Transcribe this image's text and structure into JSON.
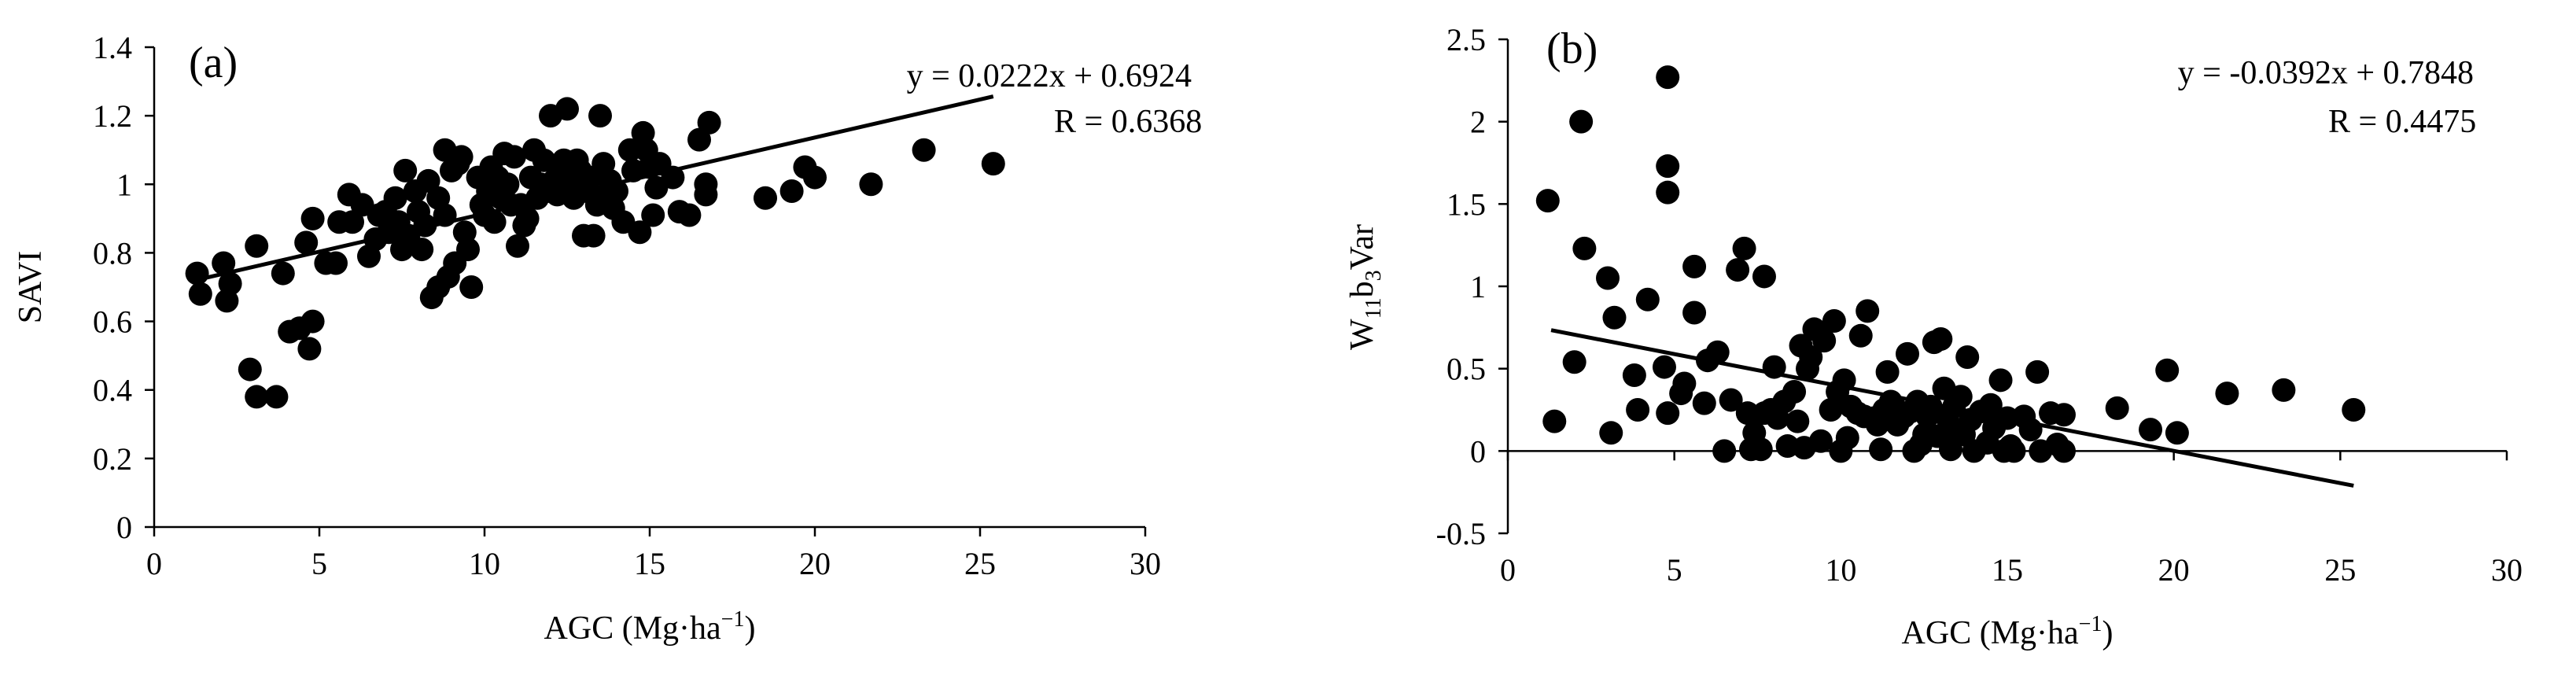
{
  "chart_data": [
    {
      "type": "scatter",
      "panel_label": "(a)",
      "xlabel": "AGC (Mg·ha⁻¹)",
      "xlabel_main": "AGC (Mg·ha",
      "xlabel_sup": "−1",
      "xlabel_tail": ")",
      "ylabel": "SAVI",
      "xlim": [
        0,
        30
      ],
      "ylim": [
        0,
        1.4
      ],
      "xticks": [
        0,
        5,
        10,
        15,
        20,
        25,
        30
      ],
      "yticks": [
        0,
        0.2,
        0.4,
        0.6,
        0.8,
        1,
        1.2,
        1.4
      ],
      "ytick_labels": [
        "0",
        "0.2",
        "0.4",
        "0.6",
        "0.8",
        "1",
        "1.2",
        "1.4"
      ],
      "equation": "y = 0.0222x + 0.6924",
      "r_text": "R = 0.6368",
      "trendline": {
        "slope": 0.0222,
        "intercept": 0.6924,
        "x_range": [
          1.3,
          25.4
        ]
      },
      "marker_color": "#000000",
      "grid": false,
      "points": [
        [
          1.3,
          0.74
        ],
        [
          1.4,
          0.68
        ],
        [
          2.1,
          0.77
        ],
        [
          2.2,
          0.66
        ],
        [
          2.3,
          0.71
        ],
        [
          2.9,
          0.46
        ],
        [
          3.1,
          0.38
        ],
        [
          3.1,
          0.82
        ],
        [
          3.7,
          0.38
        ],
        [
          3.9,
          0.74
        ],
        [
          4.1,
          0.57
        ],
        [
          4.4,
          0.58
        ],
        [
          4.6,
          0.83
        ],
        [
          4.7,
          0.52
        ],
        [
          4.8,
          0.6
        ],
        [
          4.8,
          0.9
        ],
        [
          5.2,
          0.77
        ],
        [
          5.5,
          0.77
        ],
        [
          5.6,
          0.89
        ],
        [
          5.9,
          0.97
        ],
        [
          6.0,
          0.89
        ],
        [
          6.3,
          0.94
        ],
        [
          6.5,
          0.79
        ],
        [
          6.7,
          0.84
        ],
        [
          6.8,
          0.91
        ],
        [
          7.0,
          0.92
        ],
        [
          7.1,
          0.86
        ],
        [
          7.3,
          0.96
        ],
        [
          7.4,
          0.89
        ],
        [
          7.5,
          0.81
        ],
        [
          7.6,
          1.04
        ],
        [
          7.7,
          0.85
        ],
        [
          7.9,
          0.98
        ],
        [
          8.0,
          0.92
        ],
        [
          8.1,
          0.81
        ],
        [
          8.2,
          0.88
        ],
        [
          8.3,
          1.01
        ],
        [
          8.4,
          0.67
        ],
        [
          8.6,
          0.7
        ],
        [
          8.6,
          0.96
        ],
        [
          8.8,
          0.91
        ],
        [
          8.8,
          1.1
        ],
        [
          8.9,
          0.73
        ],
        [
          9.0,
          1.04
        ],
        [
          9.1,
          0.77
        ],
        [
          9.2,
          1.06
        ],
        [
          9.3,
          1.08
        ],
        [
          9.4,
          0.86
        ],
        [
          9.5,
          0.81
        ],
        [
          9.6,
          0.7
        ],
        [
          9.8,
          1.02
        ],
        [
          9.9,
          0.94
        ],
        [
          10.0,
          0.91
        ],
        [
          10.1,
          0.98
        ],
        [
          10.2,
          1.05
        ],
        [
          10.3,
          0.89
        ],
        [
          10.4,
          1.02
        ],
        [
          10.5,
          0.96
        ],
        [
          10.6,
          1.09
        ],
        [
          10.7,
          1.0
        ],
        [
          10.8,
          0.94
        ],
        [
          10.9,
          1.08
        ],
        [
          11.0,
          0.82
        ],
        [
          11.1,
          0.94
        ],
        [
          11.2,
          0.88
        ],
        [
          11.3,
          0.9
        ],
        [
          11.4,
          1.02
        ],
        [
          11.5,
          1.1
        ],
        [
          11.6,
          0.96
        ],
        [
          11.7,
          1.0
        ],
        [
          11.8,
          1.07
        ],
        [
          11.9,
          0.98
        ],
        [
          12.0,
          1.2
        ],
        [
          12.1,
          1.01
        ],
        [
          12.2,
          0.97
        ],
        [
          12.3,
          1.04
        ],
        [
          12.4,
          1.07
        ],
        [
          12.5,
          1.22
        ],
        [
          12.6,
          1.01
        ],
        [
          12.7,
          0.96
        ],
        [
          12.8,
          1.07
        ],
        [
          12.9,
          1.04
        ],
        [
          13.0,
          0.85
        ],
        [
          13.1,
          0.98
        ],
        [
          13.2,
          1.02
        ],
        [
          13.3,
          0.85
        ],
        [
          13.4,
          0.94
        ],
        [
          13.5,
          1.2
        ],
        [
          13.6,
          1.06
        ],
        [
          13.7,
          0.97
        ],
        [
          13.8,
          1.01
        ],
        [
          13.9,
          0.93
        ],
        [
          14.0,
          0.98
        ],
        [
          14.2,
          0.89
        ],
        [
          14.4,
          1.1
        ],
        [
          14.5,
          1.04
        ],
        [
          14.7,
          0.86
        ],
        [
          14.8,
          1.15
        ],
        [
          14.9,
          1.1
        ],
        [
          15.0,
          1.05
        ],
        [
          15.1,
          0.91
        ],
        [
          15.2,
          0.99
        ],
        [
          15.3,
          1.06
        ],
        [
          15.7,
          1.02
        ],
        [
          15.9,
          0.92
        ],
        [
          16.2,
          0.91
        ],
        [
          16.5,
          1.13
        ],
        [
          16.7,
          0.97
        ],
        [
          16.7,
          1.0
        ],
        [
          16.8,
          1.18
        ],
        [
          18.5,
          0.96
        ],
        [
          19.3,
          0.98
        ],
        [
          19.7,
          1.05
        ],
        [
          20.0,
          1.02
        ],
        [
          21.7,
          1.0
        ],
        [
          23.3,
          1.1
        ],
        [
          25.4,
          1.06
        ]
      ]
    },
    {
      "type": "scatter",
      "panel_label": "(b)",
      "xlabel": "AGC (Mg·ha⁻¹)",
      "xlabel_main": "AGC (Mg·ha",
      "xlabel_sup": "−1",
      "xlabel_tail": ")",
      "ylabel": "W₁₁b₃Var",
      "ylabel_parts": [
        "W",
        "11",
        "b",
        "3",
        "Var"
      ],
      "xlim": [
        0,
        30
      ],
      "ylim": [
        -0.5,
        2.5
      ],
      "xticks": [
        0,
        5,
        10,
        15,
        20,
        25,
        30
      ],
      "yticks": [
        -0.5,
        0,
        0.5,
        1,
        1.5,
        2,
        2.5
      ],
      "ytick_labels": [
        "-0.5",
        "0",
        "0.5",
        "1",
        "1.5",
        "2",
        "2.5"
      ],
      "equation": "y = -0.0392x + 0.7848",
      "r_text": "R = 0.4475",
      "trendline": {
        "slope": -0.0392,
        "intercept": 0.7848,
        "x_range": [
          1.3,
          25.4
        ]
      },
      "marker_color": "#000000",
      "grid": false,
      "points": [
        [
          1.2,
          1.52
        ],
        [
          1.4,
          0.18
        ],
        [
          2.0,
          0.54
        ],
        [
          2.2,
          2.0
        ],
        [
          2.3,
          1.23
        ],
        [
          3.0,
          1.05
        ],
        [
          3.1,
          0.11
        ],
        [
          3.2,
          0.81
        ],
        [
          3.8,
          0.46
        ],
        [
          3.9,
          0.25
        ],
        [
          4.2,
          0.92
        ],
        [
          4.7,
          0.51
        ],
        [
          4.8,
          0.23
        ],
        [
          4.8,
          2.27
        ],
        [
          4.8,
          1.73
        ],
        [
          4.8,
          1.57
        ],
        [
          5.2,
          0.35
        ],
        [
          5.3,
          0.41
        ],
        [
          5.6,
          1.12
        ],
        [
          5.6,
          0.84
        ],
        [
          5.9,
          0.29
        ],
        [
          6.0,
          0.55
        ],
        [
          6.3,
          0.6
        ],
        [
          6.5,
          0.0
        ],
        [
          6.7,
          0.31
        ],
        [
          6.9,
          1.1
        ],
        [
          7.1,
          1.23
        ],
        [
          7.2,
          0.23
        ],
        [
          7.3,
          0.01
        ],
        [
          7.4,
          0.11
        ],
        [
          7.6,
          0.01
        ],
        [
          7.7,
          0.23
        ],
        [
          7.7,
          1.06
        ],
        [
          7.9,
          0.25
        ],
        [
          8.0,
          0.51
        ],
        [
          8.1,
          0.2
        ],
        [
          8.3,
          0.3
        ],
        [
          8.4,
          0.03
        ],
        [
          8.6,
          0.36
        ],
        [
          8.7,
          0.18
        ],
        [
          8.8,
          0.64
        ],
        [
          8.9,
          0.02
        ],
        [
          9.0,
          0.5
        ],
        [
          9.1,
          0.57
        ],
        [
          9.2,
          0.74
        ],
        [
          9.4,
          0.06
        ],
        [
          9.5,
          0.67
        ],
        [
          9.7,
          0.25
        ],
        [
          9.8,
          0.79
        ],
        [
          9.9,
          0.36
        ],
        [
          10.0,
          0.0
        ],
        [
          10.1,
          0.43
        ],
        [
          10.2,
          0.08
        ],
        [
          10.3,
          0.27
        ],
        [
          10.5,
          0.23
        ],
        [
          10.6,
          0.7
        ],
        [
          10.7,
          0.21
        ],
        [
          10.8,
          0.85
        ],
        [
          11.0,
          0.2
        ],
        [
          11.1,
          0.16
        ],
        [
          11.2,
          0.01
        ],
        [
          11.3,
          0.25
        ],
        [
          11.4,
          0.48
        ],
        [
          11.5,
          0.3
        ],
        [
          11.6,
          0.27
        ],
        [
          11.7,
          0.16
        ],
        [
          11.9,
          0.21
        ],
        [
          12.0,
          0.59
        ],
        [
          12.1,
          0.24
        ],
        [
          12.2,
          0.0
        ],
        [
          12.3,
          0.3
        ],
        [
          12.4,
          0.04
        ],
        [
          12.5,
          0.1
        ],
        [
          12.6,
          0.21
        ],
        [
          12.7,
          0.27
        ],
        [
          12.8,
          0.66
        ],
        [
          12.9,
          0.09
        ],
        [
          13.0,
          0.68
        ],
        [
          13.1,
          0.38
        ],
        [
          13.2,
          0.2
        ],
        [
          13.3,
          0.01
        ],
        [
          13.4,
          0.27
        ],
        [
          13.5,
          0.12
        ],
        [
          13.6,
          0.33
        ],
        [
          13.7,
          0.1
        ],
        [
          13.8,
          0.57
        ],
        [
          13.9,
          0.19
        ],
        [
          14.0,
          0.0
        ],
        [
          14.2,
          0.24
        ],
        [
          14.4,
          0.05
        ],
        [
          14.5,
          0.28
        ],
        [
          14.6,
          0.14
        ],
        [
          14.8,
          0.43
        ],
        [
          14.9,
          0.0
        ],
        [
          15.0,
          0.2
        ],
        [
          15.1,
          0.03
        ],
        [
          15.2,
          0.0
        ],
        [
          15.5,
          0.21
        ],
        [
          15.7,
          0.13
        ],
        [
          15.9,
          0.48
        ],
        [
          16.0,
          0.0
        ],
        [
          16.3,
          0.23
        ],
        [
          16.5,
          0.04
        ],
        [
          16.7,
          0.22
        ],
        [
          16.7,
          0.0
        ],
        [
          18.3,
          0.26
        ],
        [
          19.3,
          0.13
        ],
        [
          19.8,
          0.49
        ],
        [
          20.1,
          0.11
        ],
        [
          21.6,
          0.35
        ],
        [
          23.3,
          0.37
        ],
        [
          25.4,
          0.25
        ]
      ]
    }
  ]
}
